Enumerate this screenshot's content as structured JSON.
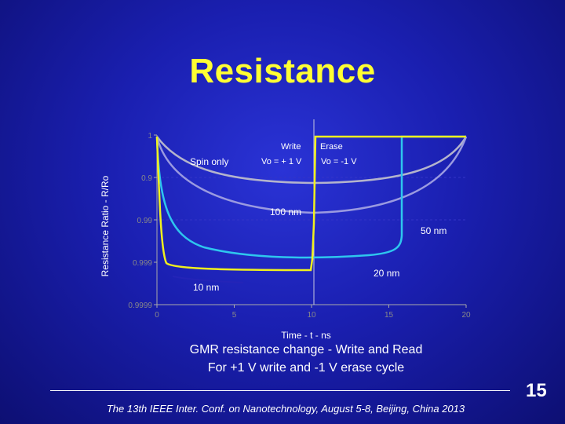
{
  "slide": {
    "title": "Resistance",
    "caption_line1": "GMR resistance change - Write and Read",
    "caption_line2": "For +1 V write and -1 V erase cycle",
    "footer": "The 13th IEEE Inter. Conf. on Nanotechnology, August 5-8, Beijing, China 2013",
    "number": "15"
  },
  "chart_data": {
    "type": "line",
    "title": "",
    "xlabel": "Time - t - ns",
    "ylabel": "Resistance Ratio - R/Ro",
    "xlim": [
      0,
      20
    ],
    "ylim": [
      0.99996,
      1
    ],
    "x_ticks": [
      "0",
      "5",
      "10",
      "15",
      "20"
    ],
    "y_ticks": [
      "1",
      "0.9",
      "0.99",
      "0.999",
      "0.9999"
    ],
    "annotations": [
      {
        "text": "Write",
        "kind": "heading"
      },
      {
        "text": "Erase",
        "kind": "heading"
      },
      {
        "text": "Spin only",
        "kind": "label"
      },
      {
        "text": "Vo = + 1 V",
        "kind": "label"
      },
      {
        "text": "Vo = -1  V",
        "kind": "label"
      }
    ],
    "colors": {
      "spin_only": "#b4b4cc",
      "100nm": "#9a9ae0",
      "50nm": "#2ec6ee",
      "20nm": "#f0f01e",
      "10nm": "#2424b8",
      "axis": "#aaaaaa",
      "tick_label": "#888888"
    },
    "series": [
      {
        "name": "100 nm",
        "x": [
          0,
          0.5,
          1,
          2,
          3,
          4,
          5,
          6,
          7,
          8,
          9,
          10,
          11,
          12,
          13,
          14,
          15,
          16,
          17,
          18,
          19,
          19.5,
          20
        ],
        "y": [
          1,
          0.99998,
          0.999978,
          0.999976,
          0.999974,
          0.999973,
          0.999972,
          0.999971,
          0.99997,
          0.99997,
          0.999969,
          0.999969,
          0.999969,
          0.999969,
          0.99997,
          0.99997,
          0.999971,
          0.999972,
          0.999973,
          0.999975,
          0.999978,
          0.99998,
          1
        ]
      },
      {
        "name": "50 nm",
        "x": [
          0,
          0.1,
          0.3,
          0.6,
          1,
          2,
          4,
          6,
          8,
          10,
          12,
          14,
          15.5,
          15.6,
          16,
          17,
          18,
          19,
          19.5,
          20
        ],
        "y": [
          1,
          0.99994,
          0.999925,
          0.999912,
          0.999905,
          0.999895,
          0.999888,
          0.999884,
          0.999881,
          0.99988,
          0.99988,
          0.99988,
          0.99988,
          1,
          1,
          0.999995,
          0.99999,
          0.999985,
          0.999992,
          1
        ]
      },
      {
        "name": "20 nm",
        "x": [
          0,
          0.1,
          0.2,
          0.3,
          0.5,
          1,
          3,
          5,
          7,
          9,
          10,
          10.05,
          10.1,
          10.2,
          10.3,
          10.5,
          12,
          14,
          16,
          18,
          19.5,
          20
        ],
        "y": [
          1,
          0.99995,
          0.9999,
          0.99986,
          0.99984,
          0.999835,
          0.99983,
          0.99983,
          0.99983,
          0.99983,
          0.99983,
          0.99988,
          0.9999,
          0.99994,
          0.99998,
          1,
          1,
          1,
          1,
          1,
          1,
          1
        ]
      },
      {
        "name": "10 nm",
        "x": [
          0.3,
          0.8,
          1.2,
          1.6
        ],
        "y": [
          0.99982,
          0.99981,
          0.999805,
          0.9998
        ]
      }
    ],
    "grid": false,
    "legend": "none"
  }
}
